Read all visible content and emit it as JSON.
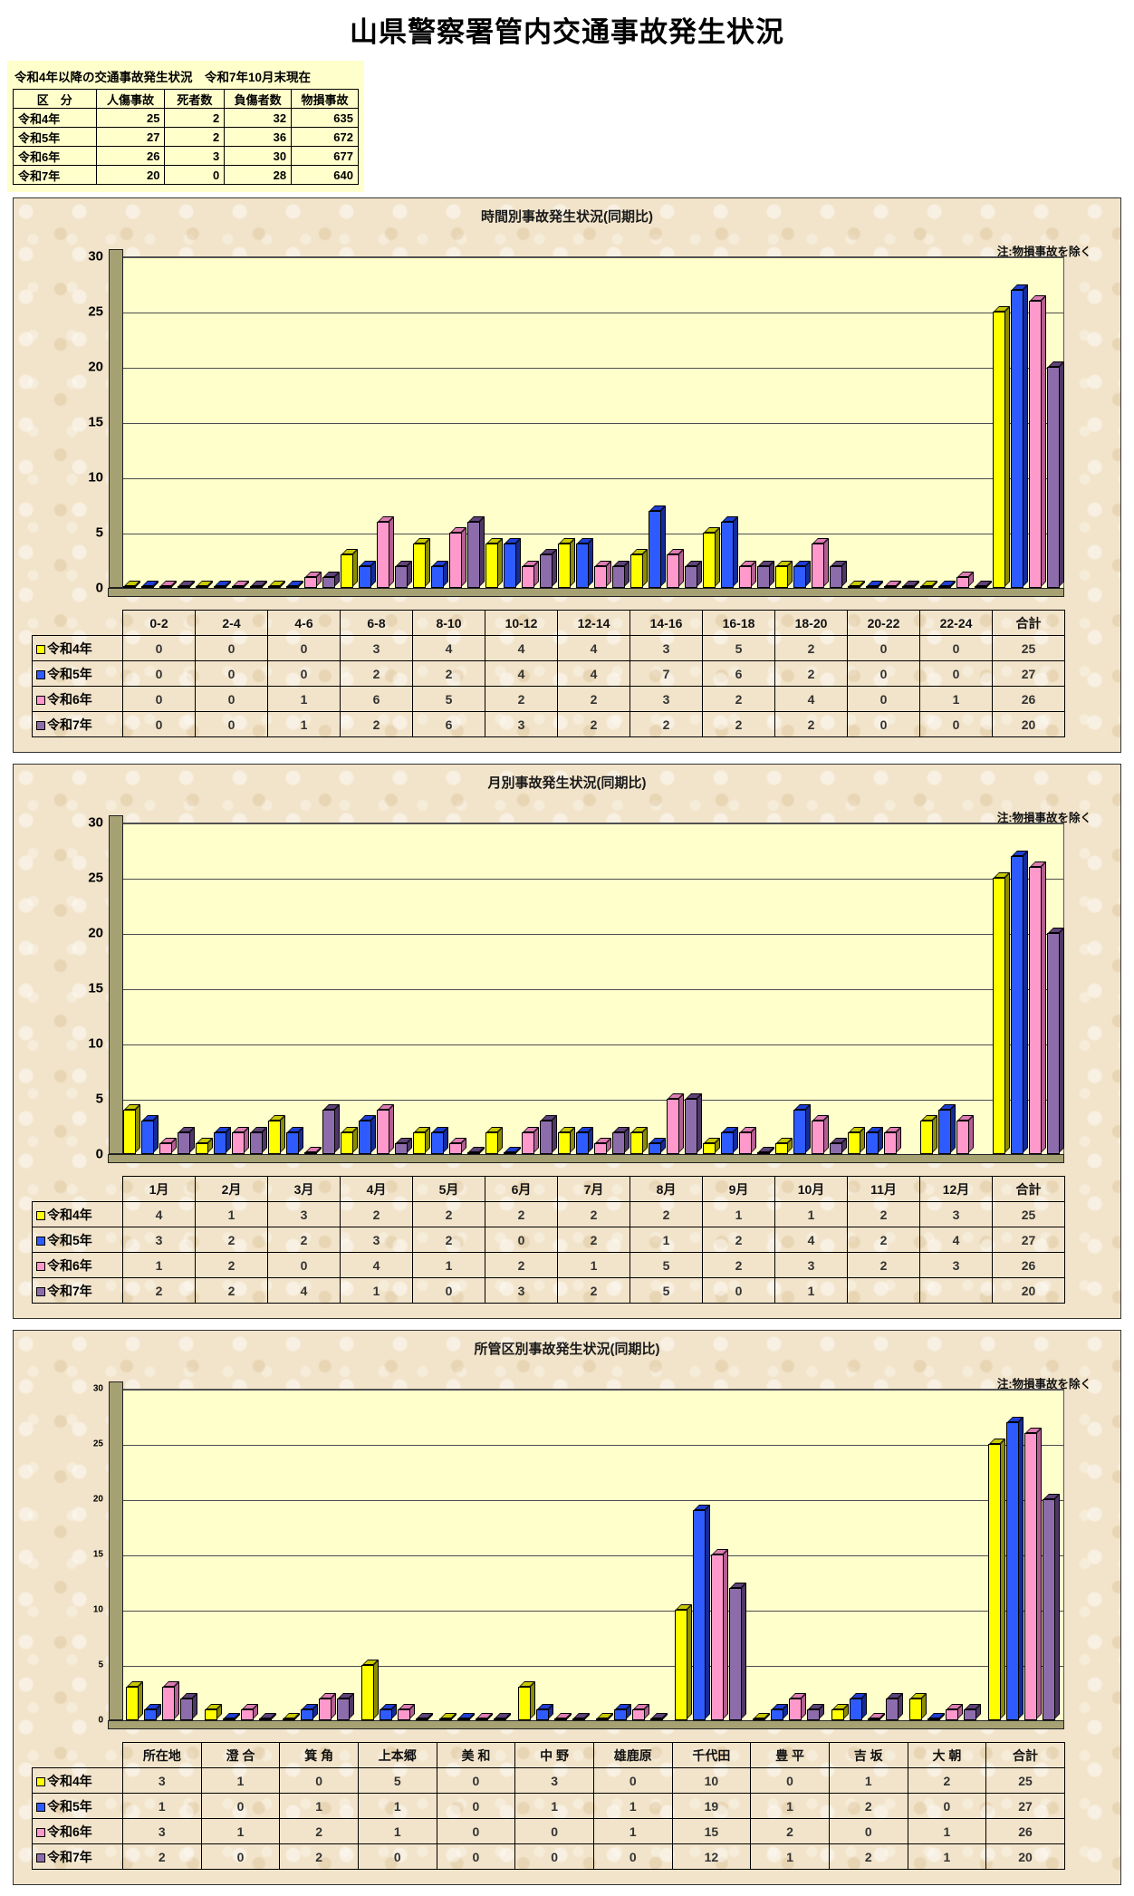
{
  "page_title": "山県警察署管内交通事故発生状況",
  "summary": {
    "caption": "令和4年以降の交通事故発生状況　令和7年10月末現在",
    "headers": [
      "区　分",
      "人傷事故",
      "死者数",
      "負傷者数",
      "物損事故"
    ],
    "rows": [
      [
        "令和4年",
        "25",
        "2",
        "32",
        "635"
      ],
      [
        "令和5年",
        "27",
        "2",
        "36",
        "672"
      ],
      [
        "令和6年",
        "26",
        "3",
        "30",
        "677"
      ],
      [
        "令和7年",
        "20",
        "0",
        "28",
        "640"
      ]
    ]
  },
  "colors": {
    "r4": {
      "face": "#ffff00",
      "top": "#c9c900",
      "side": "#8c8c00"
    },
    "r5": {
      "face": "#2e5bff",
      "top": "#1f3ed6",
      "side": "#152b96"
    },
    "r6": {
      "face": "#ff99cc",
      "top": "#dd7cb2",
      "side": "#b35f92"
    },
    "r7": {
      "face": "#8d6cab",
      "top": "#5f4379",
      "side": "#4e3764"
    }
  },
  "chart_data": [
    {
      "type": "bar",
      "title": "時間別事故発生状況(同期比)",
      "note": "注:物損事故を除く",
      "ylim": [
        0,
        30
      ],
      "yticks": [
        0,
        5,
        10,
        15,
        20,
        25,
        30
      ],
      "grid": true,
      "tick_size": "large",
      "categories": [
        "0-2",
        "2-4",
        "4-6",
        "6-8",
        "8-10",
        "10-12",
        "12-14",
        "14-16",
        "16-18",
        "18-20",
        "20-22",
        "22-24",
        "合計"
      ],
      "series": [
        {
          "name": "令和4年",
          "color_key": "r4",
          "values": [
            0,
            0,
            0,
            3,
            4,
            4,
            4,
            3,
            5,
            2,
            0,
            0,
            25
          ]
        },
        {
          "name": "令和5年",
          "color_key": "r5",
          "values": [
            0,
            0,
            0,
            2,
            2,
            4,
            4,
            7,
            6,
            2,
            0,
            0,
            27
          ]
        },
        {
          "name": "令和6年",
          "color_key": "r6",
          "values": [
            0,
            0,
            1,
            6,
            5,
            2,
            2,
            3,
            2,
            4,
            0,
            1,
            26
          ]
        },
        {
          "name": "令和7年",
          "color_key": "r7",
          "values": [
            0,
            0,
            1,
            2,
            6,
            3,
            2,
            2,
            2,
            2,
            0,
            0,
            20
          ]
        }
      ]
    },
    {
      "type": "bar",
      "title": "月別事故発生状況(同期比)",
      "note": "注:物損事故を除く",
      "ylim": [
        0,
        30
      ],
      "yticks": [
        0,
        5,
        10,
        15,
        20,
        25,
        30
      ],
      "grid": true,
      "tick_size": "large",
      "categories": [
        "1月",
        "2月",
        "3月",
        "4月",
        "5月",
        "6月",
        "7月",
        "8月",
        "9月",
        "10月",
        "11月",
        "12月",
        "合計"
      ],
      "series": [
        {
          "name": "令和4年",
          "color_key": "r4",
          "values": [
            4,
            1,
            3,
            2,
            2,
            2,
            2,
            2,
            1,
            1,
            2,
            3,
            25
          ]
        },
        {
          "name": "令和5年",
          "color_key": "r5",
          "values": [
            3,
            2,
            2,
            3,
            2,
            0,
            2,
            1,
            2,
            4,
            2,
            4,
            27
          ]
        },
        {
          "name": "令和6年",
          "color_key": "r6",
          "values": [
            1,
            2,
            0,
            4,
            1,
            2,
            1,
            5,
            2,
            3,
            2,
            3,
            26
          ]
        },
        {
          "name": "令和7年",
          "color_key": "r7",
          "values": [
            2,
            2,
            4,
            1,
            0,
            3,
            2,
            5,
            0,
            1,
            null,
            null,
            20
          ]
        }
      ]
    },
    {
      "type": "bar",
      "title": "所管区別事故発生状況(同期比)",
      "note": "注:物損事故を除く",
      "ylim": [
        0,
        30
      ],
      "yticks": [
        0,
        5,
        10,
        15,
        20,
        25,
        30
      ],
      "grid": true,
      "tick_size": "small",
      "categories": [
        "所在地",
        "澄 合",
        "箕 角",
        "上本郷",
        "美 和",
        "中 野",
        "雄鹿原",
        "千代田",
        "豊 平",
        "吉 坂",
        "大 朝",
        "合計"
      ],
      "series": [
        {
          "name": "令和4年",
          "color_key": "r4",
          "values": [
            3,
            1,
            0,
            5,
            0,
            3,
            0,
            10,
            0,
            1,
            2,
            25
          ]
        },
        {
          "name": "令和5年",
          "color_key": "r5",
          "values": [
            1,
            0,
            1,
            1,
            0,
            1,
            1,
            19,
            1,
            2,
            0,
            27
          ]
        },
        {
          "name": "令和6年",
          "color_key": "r6",
          "values": [
            3,
            1,
            2,
            1,
            0,
            0,
            1,
            15,
            2,
            0,
            1,
            26
          ]
        },
        {
          "name": "令和7年",
          "color_key": "r7",
          "values": [
            2,
            0,
            2,
            0,
            0,
            0,
            0,
            12,
            1,
            2,
            1,
            20
          ]
        }
      ]
    }
  ]
}
